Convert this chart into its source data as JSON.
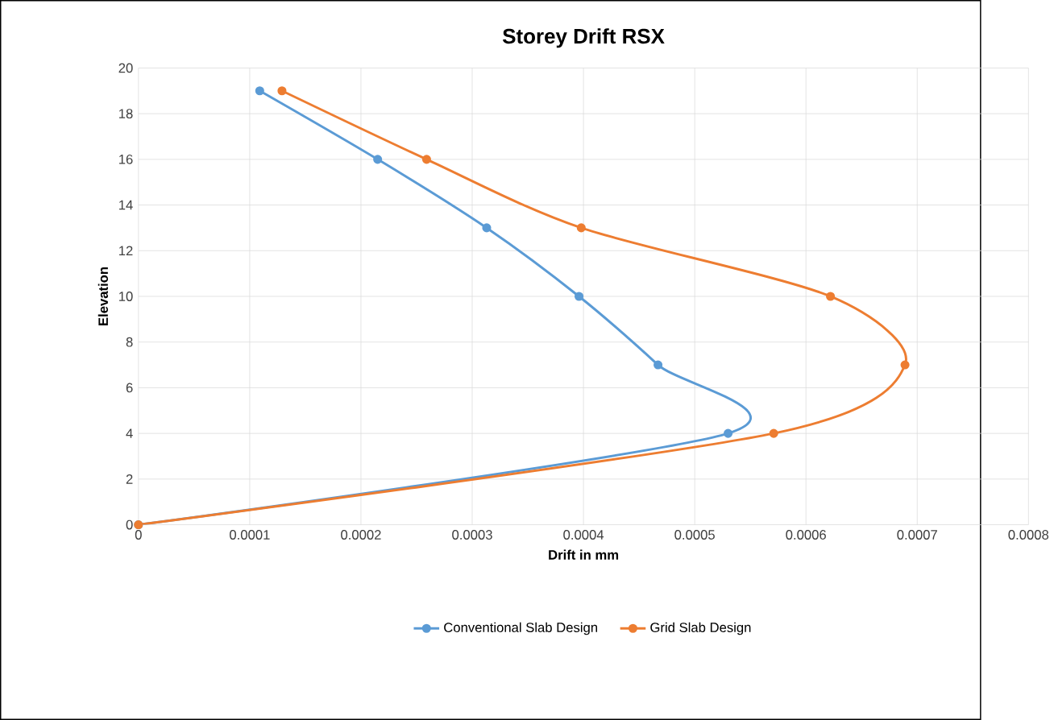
{
  "chart_data": {
    "type": "line",
    "title": "Storey Drift RSX",
    "xlabel": "Drift in mm",
    "ylabel": "Elevation",
    "xlim": [
      0,
      0.0008
    ],
    "xticks": [
      0,
      0.0001,
      0.0002,
      0.0003,
      0.0004,
      0.0005,
      0.0006,
      0.0007,
      0.0008
    ],
    "ylim": [
      0,
      20
    ],
    "yticks": [
      0,
      2,
      4,
      6,
      8,
      10,
      12,
      14,
      16,
      18,
      20
    ],
    "grid": true,
    "legend": "bottom",
    "marker": "circle",
    "series": [
      {
        "name": "Conventional Slab Design",
        "color": "#5b9bd5",
        "x": [
          0.000109,
          0.000215,
          0.000313,
          0.000396,
          0.000467,
          0.00053,
          0
        ],
        "values": [
          19,
          16,
          13,
          10,
          7,
          4,
          0
        ]
      },
      {
        "name": "Grid Slab Design",
        "color": "#ed7d31",
        "x": [
          0.000129,
          0.000259,
          0.000398,
          0.000622,
          0.000689,
          0.000571,
          0
        ],
        "values": [
          19,
          16,
          13,
          10,
          7,
          4,
          0
        ]
      }
    ]
  }
}
